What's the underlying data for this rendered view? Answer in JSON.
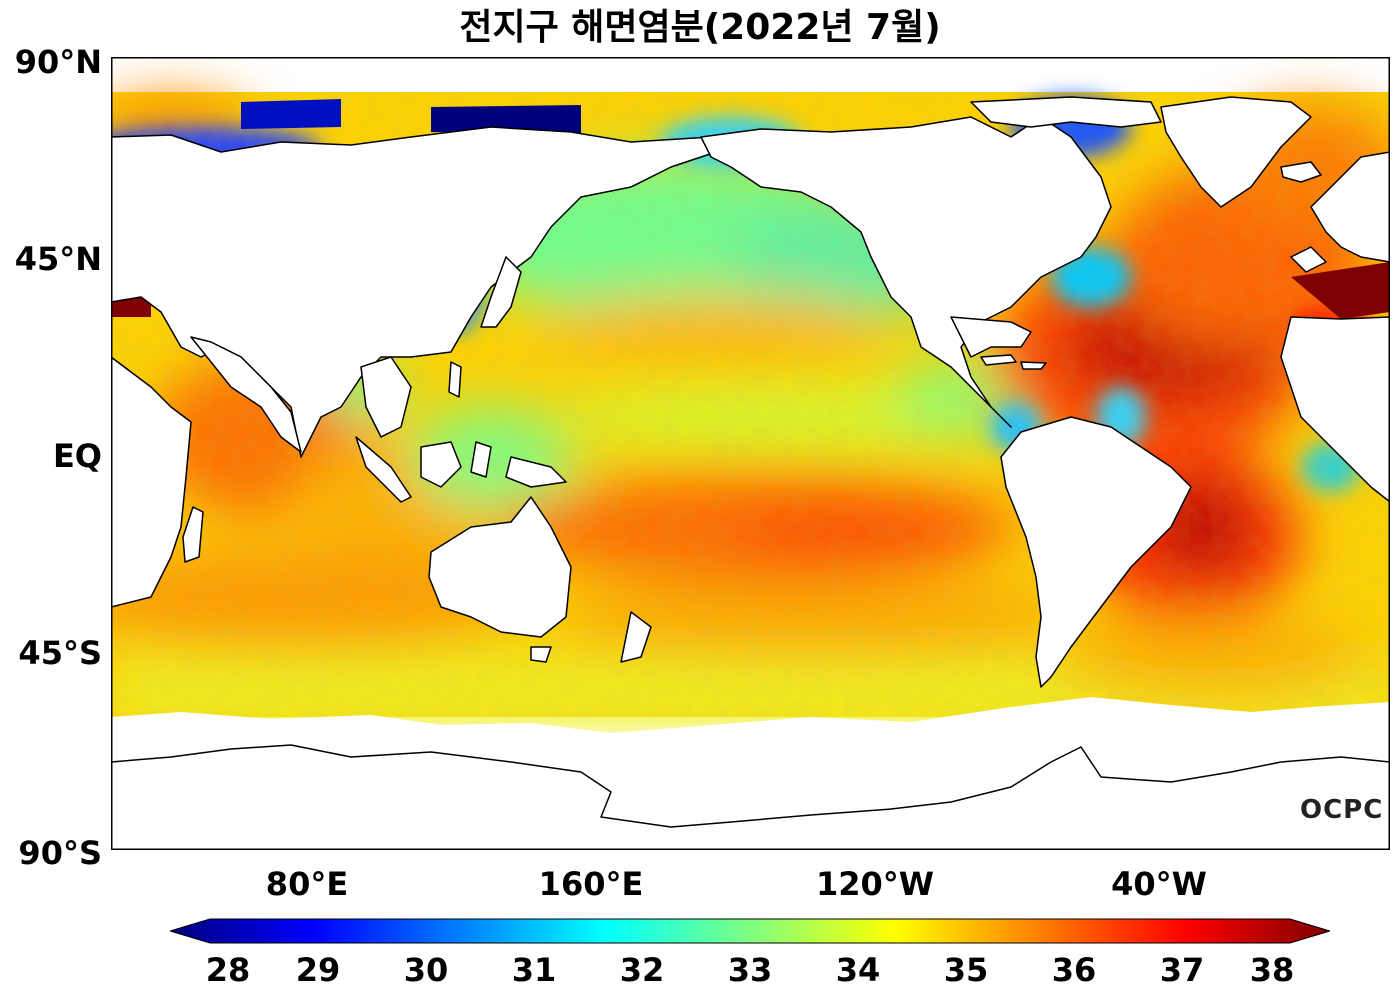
{
  "title": "전지구 해면염분(2022년 7월)",
  "axes": {
    "lat_ticks": [
      "90°N",
      "45°N",
      "EQ",
      "45°S",
      "90°S"
    ],
    "lon_ticks": [
      "80°E",
      "160°E",
      "120°W",
      "40°W"
    ]
  },
  "colorbar": {
    "ticks": [
      "28",
      "29",
      "30",
      "31",
      "32",
      "33",
      "34",
      "35",
      "36",
      "37",
      "38"
    ],
    "min": 28,
    "max": 38,
    "colormap": [
      "#00007f",
      "#0000ff",
      "#007fff",
      "#00ffff",
      "#7fff7f",
      "#ffff00",
      "#ff7f00",
      "#ff0000",
      "#7f0000"
    ],
    "extend": "both"
  },
  "logo": "OCPC",
  "colors": {
    "land": "#ffffff",
    "coastline": "#000000",
    "frame": "#000000"
  }
}
